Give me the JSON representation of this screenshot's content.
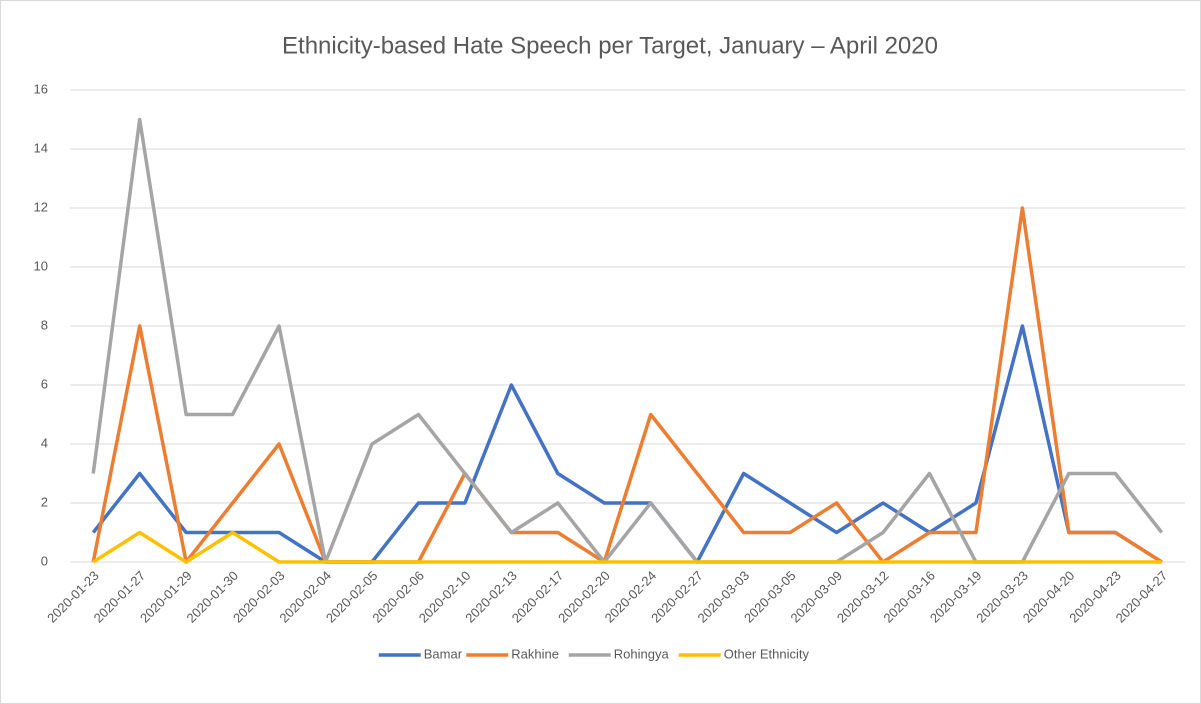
{
  "chart_data": {
    "type": "line",
    "title": "Ethnicity-based Hate Speech per Target, January – April 2020",
    "categories": [
      "2020-01-23",
      "2020-01-27",
      "2020-01-29",
      "2020-01-30",
      "2020-02-03",
      "2020-02-04",
      "2020-02-05",
      "2020-02-06",
      "2020-02-10",
      "2020-02-13",
      "2020-02-17",
      "2020-02-20",
      "2020-02-24",
      "2020-02-27",
      "2020-03-03",
      "2020-03-05",
      "2020-03-09",
      "2020-03-12",
      "2020-03-16",
      "2020-03-19",
      "2020-03-23",
      "2020-04-20",
      "2020-04-23",
      "2020-04-27"
    ],
    "series": [
      {
        "name": "Bamar",
        "color": "#4472c4",
        "values": [
          1,
          3,
          1,
          1,
          1,
          0,
          0,
          2,
          2,
          6,
          3,
          2,
          2,
          0,
          3,
          2,
          1,
          2,
          1,
          2,
          8,
          1,
          1,
          0
        ]
      },
      {
        "name": "Rakhine",
        "color": "#ed7d31",
        "values": [
          0,
          8,
          0,
          2,
          4,
          0,
          0,
          0,
          3,
          1,
          1,
          0,
          5,
          3,
          1,
          1,
          2,
          0,
          1,
          1,
          12,
          1,
          1,
          0
        ]
      },
      {
        "name": "Rohingya",
        "color": "#a5a5a5",
        "values": [
          3,
          15,
          5,
          5,
          8,
          0,
          4,
          5,
          3,
          1,
          2,
          0,
          2,
          0,
          0,
          0,
          0,
          1,
          3,
          0,
          0,
          3,
          3,
          1
        ]
      },
      {
        "name": "Other Ethnicity",
        "color": "#ffc000",
        "values": [
          0,
          1,
          0,
          1,
          0,
          0,
          0,
          0,
          0,
          0,
          0,
          0,
          0,
          0,
          0,
          0,
          0,
          0,
          0,
          0,
          0,
          0,
          0,
          0
        ]
      }
    ],
    "ylim": [
      0,
      16
    ],
    "yticks": [
      0,
      2,
      4,
      6,
      8,
      10,
      12,
      14,
      16
    ],
    "grid": true,
    "legend": "bottom"
  }
}
